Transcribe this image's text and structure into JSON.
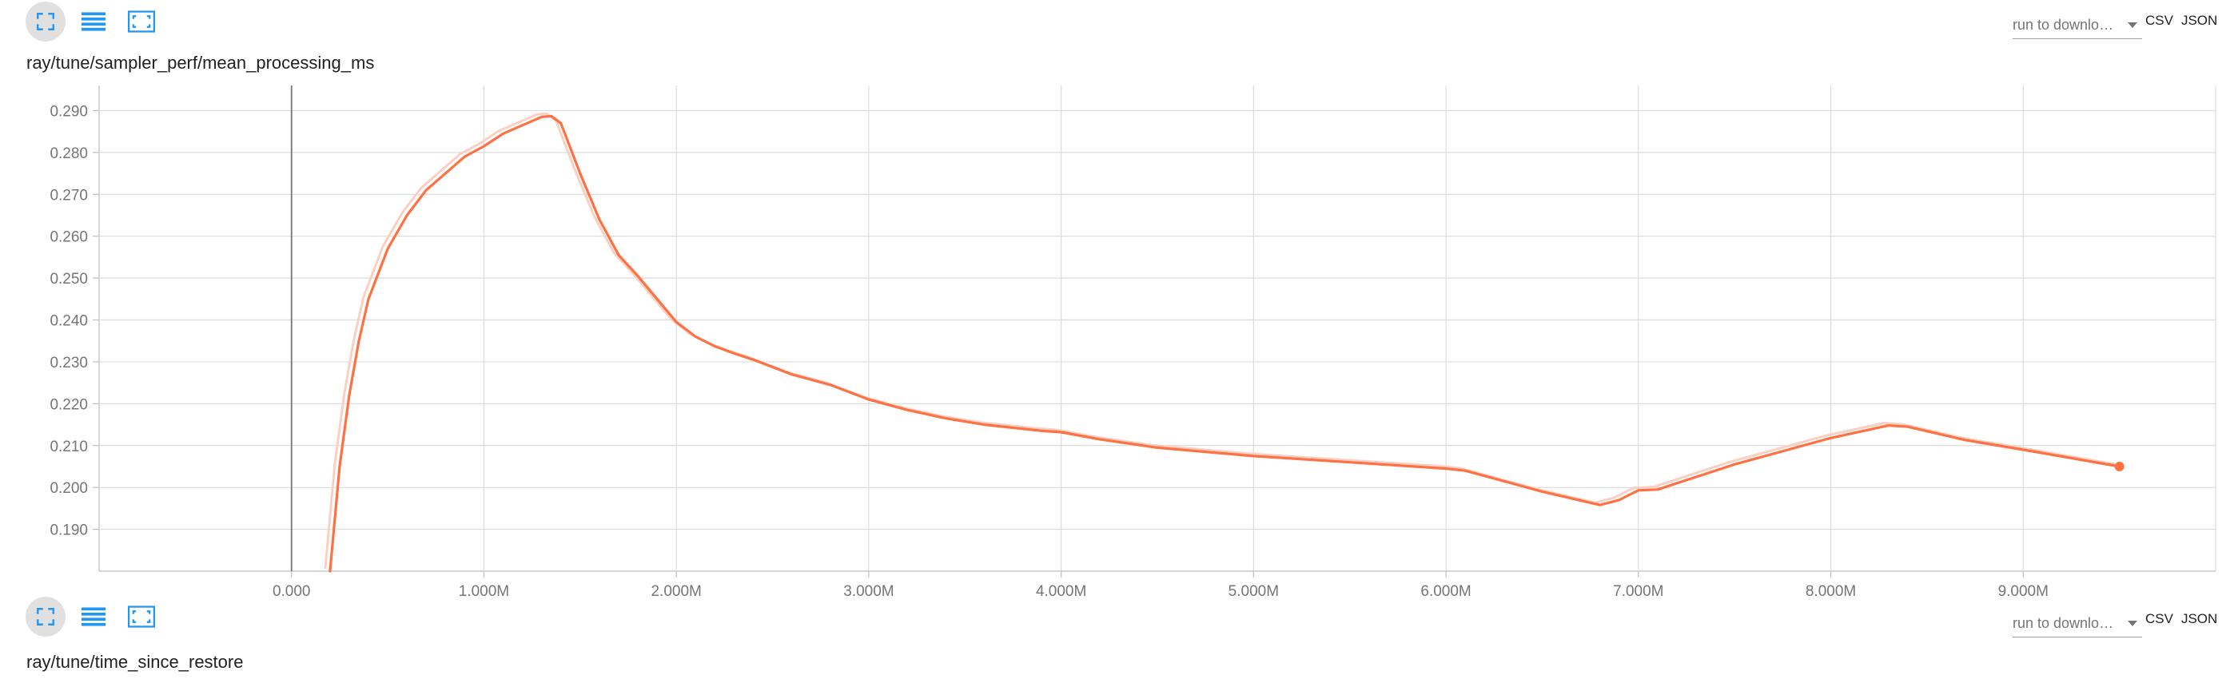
{
  "cards": [
    {
      "title": "ray/tune/sampler_perf/mean_processing_ms",
      "run_select": "run to downlo…",
      "downloads": [
        "CSV",
        "JSON"
      ],
      "toolbar_icons": [
        "fit-domain-icon",
        "toggle-log-scale-icon",
        "expand-icon"
      ]
    },
    {
      "title": "ray/tune/time_since_restore",
      "run_select": "run to downlo…",
      "downloads": [
        "CSV",
        "JSON"
      ],
      "toolbar_icons": [
        "fit-domain-icon",
        "toggle-log-scale-icon",
        "expand-icon"
      ]
    }
  ],
  "colors": {
    "series": "#ff7043",
    "series_raw": "#fbd0c2",
    "grid": "#dcdcdc",
    "icon": "#2196f3"
  },
  "chart_data": {
    "type": "line",
    "title": "ray/tune/sampler_perf/mean_processing_ms",
    "xlabel": "",
    "ylabel": "",
    "grid": true,
    "xlim": [
      -1000000.0,
      10000000.0
    ],
    "ylim": [
      0.18,
      0.296
    ],
    "x_ticks": [
      "0.000",
      "1.000M",
      "2.000M",
      "3.000M",
      "4.000M",
      "5.000M",
      "6.000M",
      "7.000M",
      "8.000M",
      "9.000M"
    ],
    "y_ticks": [
      "0.190",
      "0.200",
      "0.210",
      "0.220",
      "0.230",
      "0.240",
      "0.250",
      "0.260",
      "0.270",
      "0.280",
      "0.290"
    ],
    "series": [
      {
        "smoothed": true,
        "x": [
          200000,
          250000,
          300000,
          350000,
          400000,
          500000,
          600000,
          700000,
          800000,
          900000,
          1000000,
          1100000,
          1200000,
          1300000,
          1350000,
          1400000,
          1500000,
          1600000,
          1700000,
          1800000,
          1900000,
          2000000,
          2100000,
          2200000,
          2300000,
          2400000,
          2600000,
          2800000,
          3000000,
          3200000,
          3400000,
          3600000,
          3900000,
          4000000,
          4200000,
          4500000,
          5000000,
          5500000,
          6000000,
          6100000,
          6500000,
          6800000,
          6900000,
          7000000,
          7100000,
          7200000,
          7500000,
          8000000,
          8300000,
          8400000,
          8700000,
          9000000,
          9500000
        ],
        "y": [
          0.18,
          0.205,
          0.222,
          0.235,
          0.245,
          0.257,
          0.265,
          0.271,
          0.275,
          0.279,
          0.2815,
          0.2845,
          0.2865,
          0.2885,
          0.2887,
          0.287,
          0.275,
          0.264,
          0.2555,
          0.2505,
          0.245,
          0.2395,
          0.236,
          0.2337,
          0.232,
          0.2305,
          0.227,
          0.2245,
          0.221,
          0.2185,
          0.2165,
          0.215,
          0.2135,
          0.2132,
          0.2115,
          0.2095,
          0.2075,
          0.206,
          0.2045,
          0.204,
          0.199,
          0.1958,
          0.197,
          0.1993,
          0.1995,
          0.201,
          0.2055,
          0.2118,
          0.2148,
          0.2145,
          0.2113,
          0.209,
          0.205
        ]
      }
    ]
  }
}
